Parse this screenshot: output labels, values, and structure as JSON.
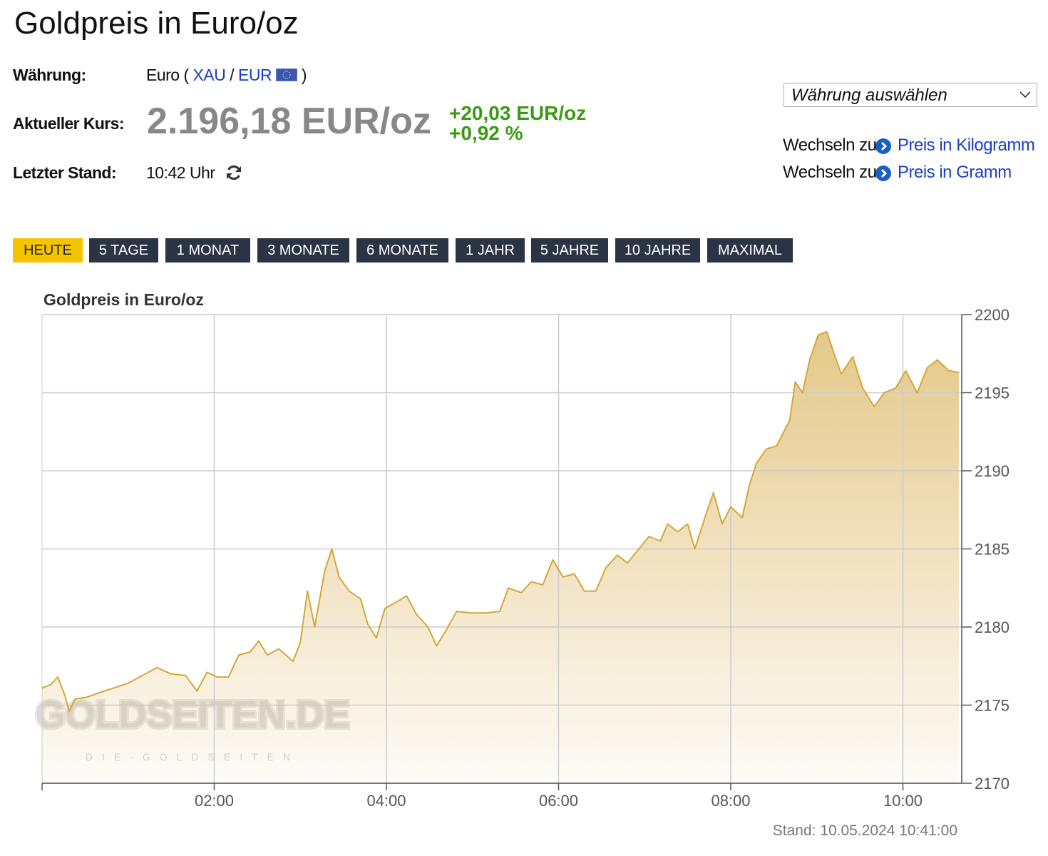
{
  "header": {
    "title": "Goldpreis in Euro/oz"
  },
  "info": {
    "currency": {
      "label": "Währung:",
      "prefix": "Euro (",
      "xau": "XAU",
      "slash": "/",
      "eur": "EUR",
      "suffix": ")"
    },
    "price": {
      "label": "Aktueller Kurs:",
      "value": "2.196,18 EUR/oz",
      "change": "+20,03 EUR/oz",
      "change_pct": "+0,92 %"
    },
    "stand": {
      "label": "Letzter Stand:",
      "value": "10:42 Uhr"
    }
  },
  "selector": "Währung auswählen",
  "links": [
    {
      "prefix": "Wechseln zu",
      "text": "Preis in Kilogramm"
    },
    {
      "prefix": "Wechseln zu",
      "text": "Preis in Gramm"
    }
  ],
  "tabs": [
    "HEUTE",
    "5 TAGE",
    "1 MONAT",
    "3 MONATE",
    "6 MONATE",
    "1 JAHR",
    "5 JAHRE",
    "10 JAHRE",
    "MAXIMAL"
  ],
  "chart_data": {
    "type": "line",
    "title": "Goldpreis in Euro/oz",
    "color": "#d4a73a",
    "x": [
      0,
      6,
      11,
      16,
      19,
      23,
      31,
      40,
      50,
      60,
      70,
      80,
      90,
      100,
      108,
      115,
      122,
      130,
      137,
      145,
      151,
      157,
      165,
      175,
      180,
      185,
      190,
      197,
      202,
      207,
      214,
      222,
      227,
      233,
      239,
      247,
      254,
      261,
      269,
      275,
      281,
      289,
      299,
      309,
      319,
      325,
      334,
      341,
      349,
      356,
      363,
      371,
      378,
      386,
      393,
      401,
      408,
      416,
      423,
      431,
      436,
      443,
      450,
      455,
      463,
      468,
      474,
      480,
      488,
      493,
      498,
      505,
      512,
      518,
      521,
      525,
      530,
      535,
      541,
      547,
      552,
      557,
      565,
      572,
      580,
      587,
      595,
      602,
      610,
      617,
      624,
      632,
      639
    ],
    "values": [
      2176.1,
      2176.3,
      2176.8,
      2175.6,
      2174.6,
      2175.4,
      2175.5,
      2175.8,
      2176.1,
      2176.4,
      2176.9,
      2177.4,
      2177.0,
      2176.9,
      2175.9,
      2177.1,
      2176.8,
      2176.8,
      2178.2,
      2178.4,
      2179.1,
      2178.2,
      2178.6,
      2177.8,
      2179.0,
      2182.3,
      2180.0,
      2183.6,
      2185.0,
      2183.2,
      2182.3,
      2181.8,
      2180.2,
      2179.3,
      2181.2,
      2181.6,
      2182.0,
      2180.8,
      2180.0,
      2178.8,
      2179.7,
      2181.0,
      2180.9,
      2180.9,
      2181.0,
      2182.5,
      2182.2,
      2182.9,
      2182.7,
      2184.3,
      2183.2,
      2183.4,
      2182.3,
      2182.3,
      2183.8,
      2184.6,
      2184.1,
      2185.0,
      2185.8,
      2185.5,
      2186.6,
      2186.1,
      2186.6,
      2185.0,
      2187.3,
      2188.6,
      2186.6,
      2187.7,
      2187.0,
      2189.1,
      2190.5,
      2191.4,
      2191.6,
      2192.7,
      2193.2,
      2195.7,
      2195.0,
      2197.1,
      2198.7,
      2198.9,
      2197.5,
      2196.2,
      2197.3,
      2195.3,
      2194.1,
      2195.0,
      2195.3,
      2196.4,
      2195.0,
      2196.6,
      2197.1,
      2196.4,
      2196.3
    ],
    "xlim": [
      0,
      641
    ],
    "xticks": [
      {
        "value": 120,
        "label": "02:00"
      },
      {
        "value": 240,
        "label": "04:00"
      },
      {
        "value": 360,
        "label": "06:00"
      },
      {
        "value": 480,
        "label": "08:00"
      },
      {
        "value": 600,
        "label": "10:00"
      }
    ],
    "ylim": [
      2170,
      2200
    ],
    "yticks": [
      2170,
      2175,
      2180,
      2185,
      2190,
      2195,
      2200
    ],
    "grid": true,
    "footnote": "Stand: 10.05.2024 10:41:00",
    "watermark": {
      "text": "GOLDSEITEN.DE",
      "subtitle": "DIE-GOLDSEITEN"
    }
  }
}
